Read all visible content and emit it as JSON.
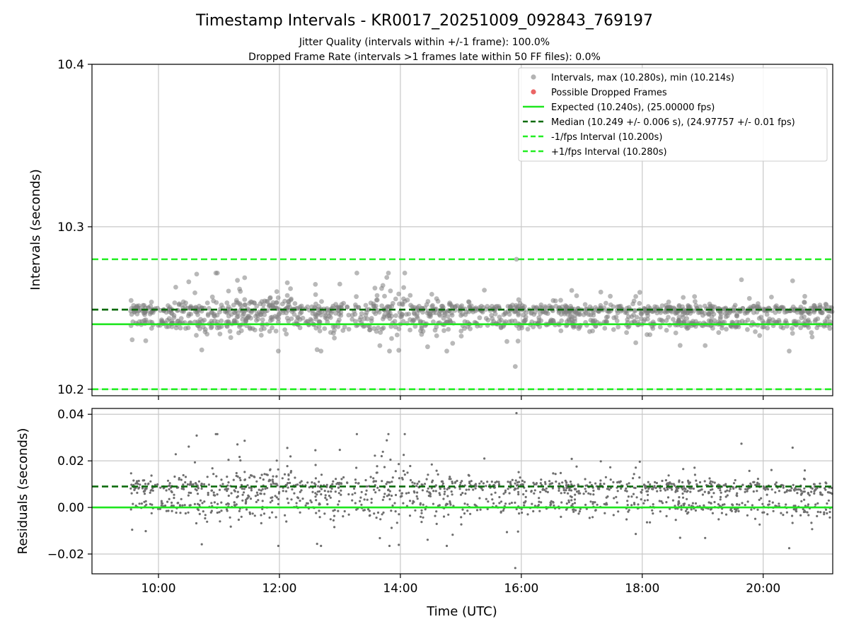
{
  "chart_data": [
    {
      "type": "scatter",
      "title": "Timestamp Intervals - KR0017_20251009_092843_769197",
      "subtitle_lines": [
        "Jitter Quality (intervals within +/-1 frame): 100.0%",
        "Dropped Frame Rate (intervals >1 frames late within 50 FF files): 0.0%"
      ],
      "xlabel": "",
      "ylabel": "Intervals (seconds)",
      "xlim_hours": [
        8.9,
        21.15
      ],
      "ylim": [
        10.196,
        10.4
      ],
      "y_ticks": [
        10.2,
        10.3,
        10.4
      ],
      "y_tick_labels": [
        "10.2",
        "10.3",
        "10.4"
      ],
      "grid": true,
      "legend_position": "top-right",
      "legend": [
        "Intervals, max (10.280s), min (10.214s)",
        "Possible Dropped Frames",
        "Expected (10.240s), (25.00000 fps)",
        "Median (10.249 +/- 0.006 s), (24.97757 +/- 0.01 fps)",
        "-1/fps Interval (10.200s)",
        "+1/fps Interval (10.280s)"
      ],
      "reference_lines": {
        "expected": 10.24,
        "median": 10.249,
        "minus_one_frame": 10.2,
        "plus_one_frame": 10.28
      },
      "series": {
        "name": "Intervals",
        "time_range_hours": [
          9.53,
          21.15
        ],
        "clusters": [
          10.249,
          10.2405
        ],
        "max": 10.28,
        "min": 10.214,
        "max_time_hours": 15.92,
        "min_time_hours": 15.9
      },
      "dropped_frames": []
    },
    {
      "type": "scatter",
      "xlabel": "Time (UTC)",
      "ylabel": "Residuals (seconds)",
      "xlim_hours": [
        8.9,
        21.15
      ],
      "ylim": [
        -0.0285,
        0.0425
      ],
      "y_ticks": [
        -0.02,
        0.0,
        0.02,
        0.04
      ],
      "y_tick_labels": [
        "−0.02",
        "0.00",
        "0.02",
        "0.04"
      ],
      "x_ticks_hours": [
        10,
        12,
        14,
        16,
        18,
        20
      ],
      "x_tick_labels": [
        "10:00",
        "12:00",
        "14:00",
        "16:00",
        "18:00",
        "20:00"
      ],
      "grid": true,
      "reference_lines": {
        "zero": 0.0,
        "median_residual": 0.009
      },
      "series": {
        "name": "Residuals",
        "time_range_hours": [
          9.53,
          21.15
        ],
        "max": 0.0405,
        "min": -0.026
      }
    }
  ],
  "colors": {
    "points": "#808080",
    "dropped": "#e84a4a",
    "expected": "#1ee61e",
    "median": "#0d6b0d",
    "interval_bounds": "#22ee22",
    "grid": "#c8c8c8",
    "axes": "#000000"
  }
}
